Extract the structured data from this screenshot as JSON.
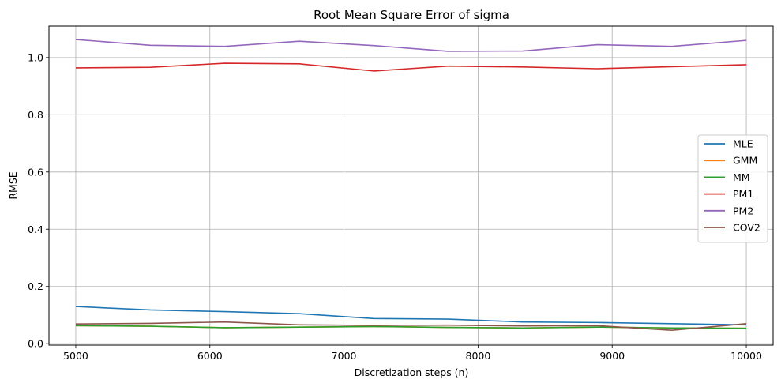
{
  "chart_data": {
    "type": "line",
    "title": "Root Mean Square Error of sigma",
    "xlabel": "Discretization steps (n)",
    "ylabel": "RMSE",
    "xlim": [
      4800,
      10200
    ],
    "ylim": [
      -0.005,
      1.11
    ],
    "xticks": [
      5000,
      6000,
      7000,
      8000,
      9000,
      10000
    ],
    "yticks": [
      0.0,
      0.2,
      0.4,
      0.6,
      0.8,
      1.0
    ],
    "ytick_labels": [
      "0.0",
      "0.2",
      "0.4",
      "0.6",
      "0.8",
      "1.0"
    ],
    "grid": true,
    "legend_position": "center-right",
    "x": [
      5000,
      5556,
      6111,
      6667,
      7222,
      7778,
      8333,
      8889,
      9444,
      10000
    ],
    "series": [
      {
        "name": "MLE",
        "color": "#1f77b4",
        "values": [
          0.13,
          0.118,
          0.112,
          0.105,
          0.088,
          0.086,
          0.076,
          0.074,
          0.07,
          0.066
        ]
      },
      {
        "name": "GMM",
        "color": "#ff7f0e",
        "values": [
          0.063,
          0.061,
          0.056,
          0.058,
          0.06,
          0.057,
          0.055,
          0.058,
          0.055,
          0.054
        ]
      },
      {
        "name": "MM",
        "color": "#2ca02c",
        "values": [
          0.063,
          0.061,
          0.056,
          0.058,
          0.06,
          0.057,
          0.055,
          0.058,
          0.055,
          0.054
        ]
      },
      {
        "name": "PM1",
        "color": "#d62728",
        "values": [
          0.964,
          0.966,
          0.98,
          0.978,
          0.953,
          0.97,
          0.967,
          0.961,
          0.968,
          0.975
        ]
      },
      {
        "name": "PM2",
        "color": "#9467bd",
        "values": [
          1.063,
          1.043,
          1.039,
          1.057,
          1.042,
          1.022,
          1.023,
          1.045,
          1.039,
          1.06
        ]
      },
      {
        "name": "COV2",
        "color": "#8c564b",
        "values": [
          0.069,
          0.071,
          0.076,
          0.066,
          0.064,
          0.065,
          0.062,
          0.063,
          0.047,
          0.07
        ]
      }
    ]
  }
}
